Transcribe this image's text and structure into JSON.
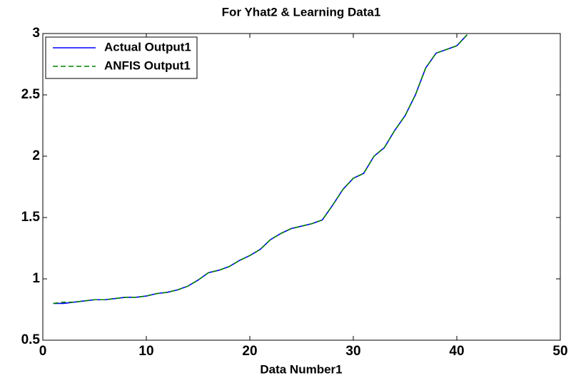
{
  "chart_data": {
    "type": "line",
    "title": "For Yhat2 & Learning Data1",
    "x_label": "Data Number1",
    "x": [
      1,
      2,
      3,
      4,
      5,
      6,
      7,
      8,
      9,
      10,
      11,
      12,
      13,
      14,
      15,
      16,
      17,
      18,
      19,
      20,
      21,
      22,
      23,
      24,
      25,
      26,
      27,
      28,
      29,
      30,
      31,
      32,
      33,
      34,
      35,
      36,
      37,
      38,
      39,
      40,
      41
    ],
    "series": [
      {
        "name": "Actual Output1",
        "color": "#0000ff",
        "linestyle": "solid",
        "values": [
          0.8,
          0.8,
          0.81,
          0.82,
          0.83,
          0.83,
          0.84,
          0.85,
          0.85,
          0.86,
          0.88,
          0.89,
          0.91,
          0.94,
          0.99,
          1.05,
          1.07,
          1.1,
          1.15,
          1.19,
          1.24,
          1.32,
          1.37,
          1.41,
          1.43,
          1.45,
          1.48,
          1.6,
          1.73,
          1.82,
          1.86,
          2.0,
          2.07,
          2.21,
          2.33,
          2.5,
          2.72,
          2.84,
          2.87,
          2.9,
          2.99
        ]
      },
      {
        "name": "ANFIS Output1",
        "color": "#008000",
        "linestyle": "dashed",
        "values": [
          0.8,
          0.81,
          0.81,
          0.82,
          0.83,
          0.83,
          0.84,
          0.85,
          0.85,
          0.86,
          0.88,
          0.89,
          0.91,
          0.94,
          0.99,
          1.05,
          1.07,
          1.1,
          1.15,
          1.19,
          1.24,
          1.32,
          1.37,
          1.41,
          1.43,
          1.45,
          1.48,
          1.6,
          1.73,
          1.82,
          1.86,
          2.0,
          2.07,
          2.21,
          2.33,
          2.5,
          2.72,
          2.84,
          2.87,
          2.9,
          2.99
        ]
      }
    ],
    "xlim": [
      0,
      50
    ],
    "xticks": [
      0,
      10,
      20,
      30,
      40,
      50
    ],
    "ylim": [
      0.5,
      3
    ],
    "yticks": [
      0.5,
      1,
      1.5,
      2,
      2.5,
      3
    ],
    "grid": false,
    "legend": "upper left"
  }
}
